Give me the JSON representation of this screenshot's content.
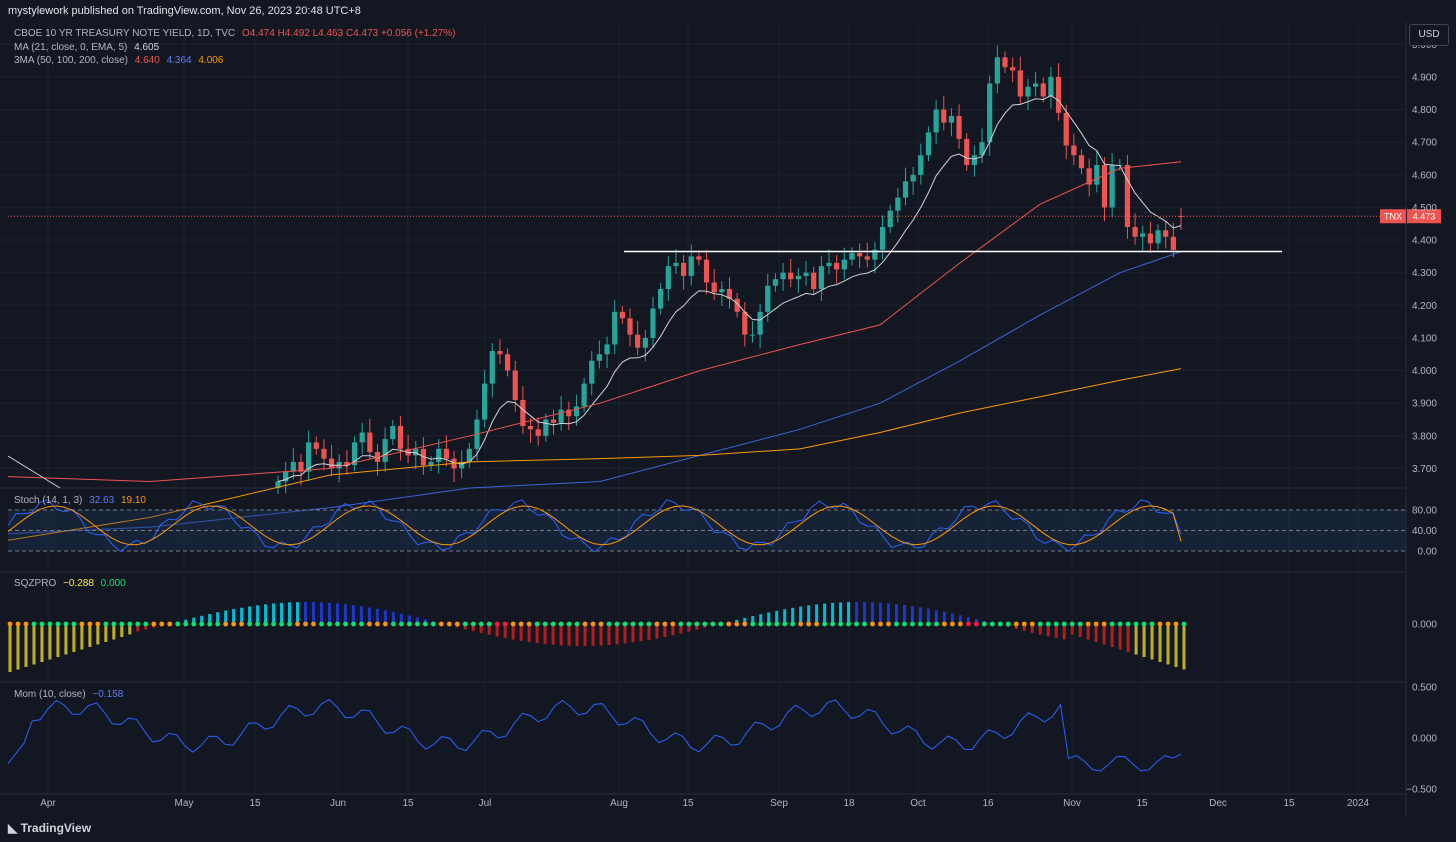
{
  "header": {
    "publisher": "mystylework published on TradingView.com, Nov 26, 2023 20:48 UTC+8"
  },
  "legends": {
    "main_title": "CBOE 10 YR TREASURY NOTE YIELD, 1D, TVC",
    "ohlc": "O4.474 H4.492 L4.463 C4.473 +0.056 (+1.27%)",
    "ma_label": "MA (21, close, 0, EMA, 5)",
    "ma_value": "4.605",
    "ma3_label": "3MA (50, 100, 200, close)",
    "ma3_v1": "4.640",
    "ma3_v2": "4.364",
    "ma3_v3": "4.006",
    "stoch_label": "Stoch (14, 1, 3)",
    "stoch_k": "32.63",
    "stoch_d": "19.10",
    "sqz_label": "SQZPRO",
    "sqz_v1": "−0.288",
    "sqz_v2": "0.000",
    "mom_label": "Mom (10, close)",
    "mom_value": "−0.158"
  },
  "currency": "USD",
  "symbol_badge": {
    "ticker": "TNX",
    "price": "4.473"
  },
  "footer": {
    "brand": "TradingView"
  },
  "colors": {
    "bg": "#131722",
    "up": "#26a69a",
    "down": "#ef5350",
    "grid": "#1e2230"
  },
  "chart_data": {
    "type": "candlestick",
    "price_axis": {
      "ticks": [
        "5.000",
        "4.900",
        "4.800",
        "4.700",
        "4.600",
        "4.500",
        "4.400",
        "4.300",
        "4.200",
        "4.100",
        "4.000",
        "3.900",
        "3.800",
        "3.700"
      ],
      "range": [
        3.64,
        5.05
      ]
    },
    "x_axis": {
      "ticks": [
        "Apr",
        "May",
        "15",
        "Jun",
        "15",
        "Jul",
        "Aug",
        "15",
        "Sep",
        "18",
        "Oct",
        "16",
        "Nov",
        "15",
        "Dec",
        "15",
        "2024"
      ]
    },
    "closes": [
      3.66,
      3.69,
      3.72,
      3.69,
      3.78,
      3.76,
      3.73,
      3.7,
      3.72,
      3.71,
      3.78,
      3.81,
      3.75,
      3.72,
      3.79,
      3.83,
      3.76,
      3.74,
      3.76,
      3.71,
      3.72,
      3.76,
      3.73,
      3.7,
      3.72,
      3.76,
      3.85,
      3.96,
      4.06,
      4.05,
      4.0,
      3.91,
      3.83,
      3.82,
      3.8,
      3.85,
      3.84,
      3.88,
      3.86,
      3.89,
      3.96,
      4.03,
      4.05,
      4.08,
      4.18,
      4.16,
      4.11,
      4.07,
      4.1,
      4.19,
      4.25,
      4.32,
      4.33,
      4.29,
      4.35,
      4.34,
      4.27,
      4.24,
      4.25,
      4.22,
      4.18,
      4.11,
      4.11,
      4.18,
      4.26,
      4.28,
      4.3,
      4.28,
      4.29,
      4.3,
      4.25,
      4.32,
      4.33,
      4.31,
      4.34,
      4.36,
      4.35,
      4.34,
      4.37,
      4.44,
      4.49,
      4.53,
      4.58,
      4.6,
      4.66,
      4.73,
      4.8,
      4.76,
      4.78,
      4.71,
      4.63,
      4.66,
      4.7,
      4.88,
      4.96,
      4.93,
      4.92,
      4.84,
      4.87,
      4.88,
      4.84,
      4.9,
      4.79,
      4.69,
      4.66,
      4.62,
      4.57,
      4.63,
      4.5,
      4.63,
      4.63,
      4.44,
      4.41,
      4.42,
      4.39,
      4.43,
      4.41,
      4.37,
      4.473
    ],
    "ma21_last": 4.605,
    "ma50_last": 4.64,
    "ma100_last": 4.364,
    "ma200_last": 4.006,
    "support_level": 4.365,
    "stoch": {
      "levels": [
        "80.00",
        "40.00",
        "0.00"
      ],
      "k_last": 32.63,
      "d_last": 19.1
    },
    "sqzpro": {
      "levels": [
        "0.000"
      ],
      "last": -0.288
    },
    "momentum": {
      "levels": [
        "0.500",
        "0.000",
        "−0.500"
      ],
      "last": -0.158
    }
  }
}
